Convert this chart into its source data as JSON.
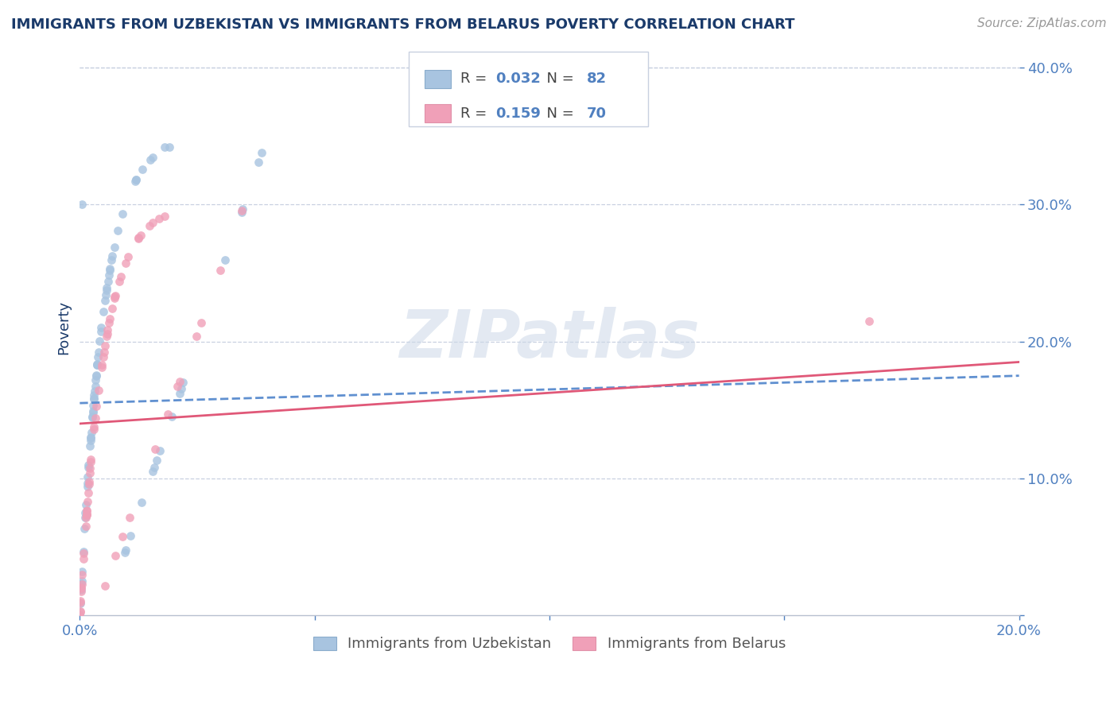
{
  "title": "IMMIGRANTS FROM UZBEKISTAN VS IMMIGRANTS FROM BELARUS POVERTY CORRELATION CHART",
  "source": "Source: ZipAtlas.com",
  "ylabel": "Poverty",
  "xlim": [
    0.0,
    0.2
  ],
  "ylim": [
    0.0,
    0.42
  ],
  "color_uzbekistan": "#a8c4e0",
  "color_belarus": "#f0a0b8",
  "line_color_uzbekistan": "#6090d0",
  "line_color_belarus": "#e05878",
  "title_color": "#1a3a6a",
  "axis_color": "#5080c0",
  "watermark": "ZIPatlas",
  "r_uzb": "0.032",
  "n_uzb": "82",
  "r_bel": "0.159",
  "n_bel": "70",
  "legend_uzb": "Immigrants from Uzbekistan",
  "legend_bel": "Immigrants from Belarus",
  "uzb_line_x0": 0.0,
  "uzb_line_y0": 0.155,
  "uzb_line_x1": 0.2,
  "uzb_line_y1": 0.175,
  "bel_line_x0": 0.0,
  "bel_line_y0": 0.14,
  "bel_line_x1": 0.2,
  "bel_line_y1": 0.185
}
